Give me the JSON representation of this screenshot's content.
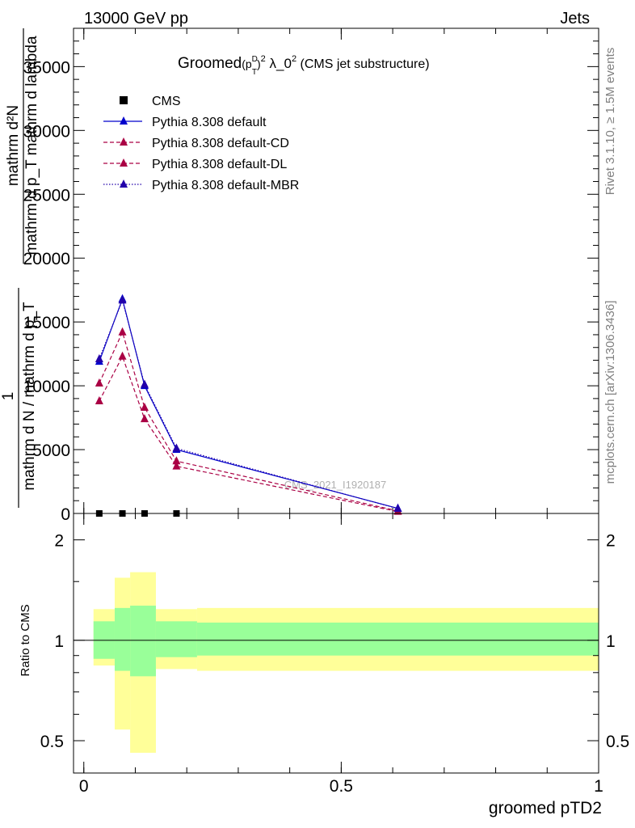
{
  "header": {
    "left": "13000 GeV pp",
    "right": "Jets"
  },
  "side": {
    "rivet": "Rivet 3.1.10, ≥ 1.5M events",
    "mcplots": "mcplots.cern.ch [arXiv:1306.3436]"
  },
  "chart_data": [
    {
      "type": "line",
      "title": "Groomed(p_T^D)^2 λ_0^2 (CMS jet substructure)",
      "title_parts": {
        "pre": "Groomed",
        "sup_d": "D",
        "sub_t": "T",
        "sq": "2",
        "lambda": " λ_0",
        "tail": " (CMS jet substructure)"
      },
      "watermark": "CMS_2021_I1920187",
      "ylabel": {
        "num": "mathrm d²N",
        "den": "mathrm d p_T mathrm d lambda",
        "one": "1",
        "den2": "mathrm d N / mathrm d p_T"
      },
      "ylim": [
        0,
        38000
      ],
      "xlim": [
        -0.02,
        1.0
      ],
      "yticks": [
        0,
        5000,
        10000,
        15000,
        20000,
        25000,
        30000,
        35000
      ],
      "ytick_labels": [
        "0",
        "5000",
        "10000",
        "15000",
        "20000",
        "25000",
        "30000",
        "35000"
      ],
      "legend_position": "top-left",
      "legend": [
        "CMS",
        "Pythia 8.308 default",
        "Pythia 8.308 default-CD",
        "Pythia 8.308 default-DL",
        "Pythia 8.308 default-MBR"
      ],
      "x": [
        0.03,
        0.075,
        0.118,
        0.18,
        0.61
      ],
      "series": [
        {
          "name": "CMS",
          "values": [
            0,
            0,
            0,
            0,
            null
          ],
          "color": "#000000",
          "style": "square"
        },
        {
          "name": "Pythia 8.308 default",
          "values": [
            11900,
            16800,
            10000,
            5000,
            400
          ],
          "color": "#0000cc",
          "style": "solid"
        },
        {
          "name": "Pythia 8.308 default-CD",
          "values": [
            10200,
            14200,
            8300,
            4100,
            200
          ],
          "color": "#aa0044",
          "style": "dashed"
        },
        {
          "name": "Pythia 8.308 default-DL",
          "values": [
            8800,
            12300,
            7400,
            3700,
            150
          ],
          "color": "#aa0044",
          "style": "dashed"
        },
        {
          "name": "Pythia 8.308 default-MBR",
          "values": [
            12100,
            16700,
            10100,
            5100,
            380
          ],
          "color": "#2200aa",
          "style": "dotted"
        }
      ]
    },
    {
      "type": "area",
      "ylabel": "Ratio to CMS",
      "xlabel": "groomed pTD2",
      "scale": "log",
      "ylim": [
        0.4,
        2.4
      ],
      "xlim": [
        -0.02,
        1.0
      ],
      "yticks": [
        0.5,
        1,
        2
      ],
      "ytick_labels": [
        "0.5",
        "1",
        "2"
      ],
      "xticks": [
        0,
        0.5,
        1
      ],
      "xtick_labels": [
        "0",
        "0.5",
        "1"
      ],
      "bins": [
        {
          "x0": 0.0,
          "x1": 0.06,
          "inner": [
            0.88,
            1.14
          ],
          "outer": [
            0.84,
            1.24
          ]
        },
        {
          "x0": 0.06,
          "x1": 0.09,
          "inner": [
            0.81,
            1.25
          ],
          "outer": [
            0.54,
            1.54
          ]
        },
        {
          "x0": 0.09,
          "x1": 0.14,
          "inner": [
            0.78,
            1.27
          ],
          "outer": [
            0.46,
            1.6
          ]
        },
        {
          "x0": 0.14,
          "x1": 0.22,
          "inner": [
            0.89,
            1.14
          ],
          "outer": [
            0.82,
            1.24
          ]
        },
        {
          "x0": 0.22,
          "x1": 1.0,
          "inner": [
            0.9,
            1.13
          ],
          "outer": [
            0.81,
            1.25
          ]
        }
      ],
      "inner_color": "#99ff99",
      "outer_color": "#ffff99"
    }
  ]
}
